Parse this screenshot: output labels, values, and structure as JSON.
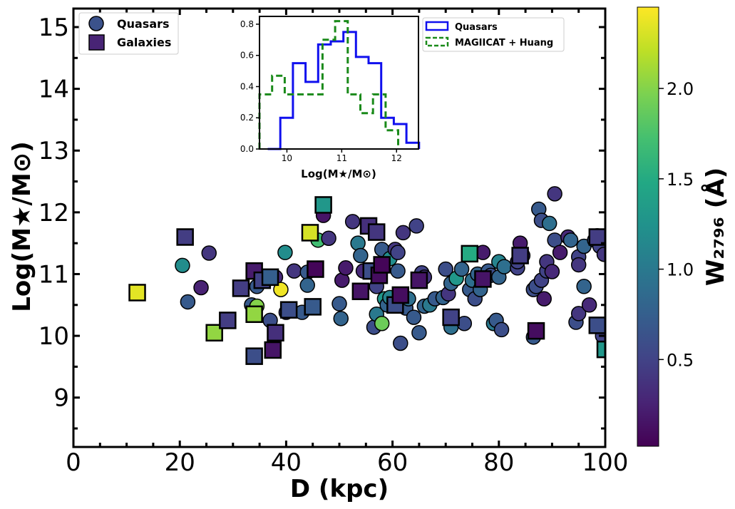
{
  "chart_data": [
    {
      "type": "scatter",
      "xlabel": "D (kpc)",
      "ylabel": "Log(M★/M⊙)",
      "xlim": [
        0,
        100
      ],
      "ylim": [
        8.2,
        15.3
      ],
      "xticks": [
        0,
        20,
        40,
        60,
        80,
        100
      ],
      "yticks": [
        9,
        10,
        11,
        12,
        13,
        14,
        15
      ],
      "grid": false,
      "legend": {
        "position": "top-left",
        "entries": [
          {
            "label": "Quasars",
            "marker": "circle"
          },
          {
            "label": "Galaxies",
            "marker": "square"
          }
        ]
      },
      "colorbar": {
        "label": "W₂₇₉₆ (Å)",
        "range": [
          0.02,
          2.45
        ],
        "ticks": [
          0.5,
          1.0,
          1.5,
          2.0
        ],
        "colormap": "viridis"
      },
      "series": [
        {
          "name": "Quasars",
          "marker": "circle",
          "points": [
            [
              20.5,
              11.14,
              1.2
            ],
            [
              21.5,
              10.55,
              0.7
            ],
            [
              24.0,
              10.78,
              0.25
            ],
            [
              25.5,
              11.34,
              0.4
            ],
            [
              33.5,
              10.5,
              0.7
            ],
            [
              34.5,
              10.48,
              2.0
            ],
            [
              34.5,
              10.8,
              0.7
            ],
            [
              36.0,
              10.9,
              0.6
            ],
            [
              37.0,
              10.25,
              0.6
            ],
            [
              38.0,
              10.95,
              0.3
            ],
            [
              39.0,
              10.75,
              2.4
            ],
            [
              39.8,
              11.35,
              1.2
            ],
            [
              40.0,
              10.38,
              0.5
            ],
            [
              41.5,
              11.05,
              0.4
            ],
            [
              43.0,
              10.38,
              0.7
            ],
            [
              44.0,
              11.03,
              0.7
            ],
            [
              44.0,
              10.82,
              0.8
            ],
            [
              46.0,
              11.55,
              1.7
            ],
            [
              47.0,
              11.95,
              0.15
            ],
            [
              48.0,
              11.58,
              0.4
            ],
            [
              50.0,
              10.52,
              0.7
            ],
            [
              50.3,
              10.28,
              0.8
            ],
            [
              50.5,
              10.9,
              0.2
            ],
            [
              51.2,
              11.1,
              0.2
            ],
            [
              52.5,
              11.85,
              0.4
            ],
            [
              53.5,
              11.5,
              1.0
            ],
            [
              54.0,
              11.3,
              0.8
            ],
            [
              54.5,
              11.05,
              0.3
            ],
            [
              56.5,
              10.14,
              0.6
            ],
            [
              57.0,
              10.8,
              0.5
            ],
            [
              57.0,
              10.35,
              1.0
            ],
            [
              58.0,
              10.2,
              1.9
            ],
            [
              58.0,
              11.4,
              0.7
            ],
            [
              58.5,
              10.6,
              1.3
            ],
            [
              59.0,
              10.5,
              0.8
            ],
            [
              59.5,
              10.62,
              1.1
            ],
            [
              59.5,
              11.25,
              1.2
            ],
            [
              60.5,
              11.4,
              0.4
            ],
            [
              61.0,
              11.35,
              0.5
            ],
            [
              61.0,
              11.05,
              0.7
            ],
            [
              61.5,
              9.88,
              0.6
            ],
            [
              62.0,
              11.67,
              0.4
            ],
            [
              62.5,
              10.45,
              0.7
            ],
            [
              63.0,
              10.6,
              0.9
            ],
            [
              64.0,
              10.3,
              0.7
            ],
            [
              64.5,
              11.78,
              0.5
            ],
            [
              65.0,
              10.05,
              0.7
            ],
            [
              65.5,
              11.02,
              0.5
            ],
            [
              66.0,
              10.95,
              0.4
            ],
            [
              66.0,
              10.48,
              0.8
            ],
            [
              67.0,
              10.5,
              1.0
            ],
            [
              68.0,
              10.6,
              0.7
            ],
            [
              69.5,
              10.62,
              0.8
            ],
            [
              70.0,
              11.08,
              0.6
            ],
            [
              70.5,
              10.68,
              0.4
            ],
            [
              71.0,
              10.14,
              0.9
            ],
            [
              71.0,
              10.85,
              0.8
            ],
            [
              72.0,
              10.93,
              1.3
            ],
            [
              73.0,
              11.08,
              0.8
            ],
            [
              73.5,
              10.2,
              0.6
            ],
            [
              74.5,
              10.75,
              0.7
            ],
            [
              75.0,
              10.9,
              0.9
            ],
            [
              75.5,
              10.6,
              0.6
            ],
            [
              76.0,
              11.0,
              0.8
            ],
            [
              76.5,
              10.75,
              0.8
            ],
            [
              77.0,
              11.35,
              0.2
            ],
            [
              78.0,
              11.05,
              0.7
            ],
            [
              78.5,
              10.98,
              0.6
            ],
            [
              79.0,
              10.2,
              1.0
            ],
            [
              79.5,
              10.25,
              0.7
            ],
            [
              80.0,
              11.2,
              1.1
            ],
            [
              80.0,
              10.95,
              0.8
            ],
            [
              80.5,
              10.1,
              0.6
            ],
            [
              81.0,
              11.12,
              0.9
            ],
            [
              83.5,
              11.1,
              0.5
            ],
            [
              83.5,
              11.2,
              0.5
            ],
            [
              84.0,
              11.5,
              0.2
            ],
            [
              84.5,
              11.3,
              0.4
            ],
            [
              86.5,
              10.75,
              0.6
            ],
            [
              86.5,
              9.98,
              0.7
            ],
            [
              87.0,
              10.8,
              0.6
            ],
            [
              87.5,
              12.05,
              0.7
            ],
            [
              88.0,
              11.87,
              0.6
            ],
            [
              88.0,
              10.9,
              0.5
            ],
            [
              88.5,
              10.6,
              0.2
            ],
            [
              89.0,
              11.05,
              0.5
            ],
            [
              89.0,
              11.2,
              0.4
            ],
            [
              89.5,
              11.82,
              0.9
            ],
            [
              90.0,
              11.04,
              0.3
            ],
            [
              90.5,
              11.55,
              0.6
            ],
            [
              90.5,
              12.3,
              0.4
            ],
            [
              91.5,
              11.35,
              0.2
            ],
            [
              93.0,
              11.6,
              0.3
            ],
            [
              93.5,
              11.55,
              0.8
            ],
            [
              94.5,
              10.22,
              0.6
            ],
            [
              95.0,
              11.28,
              0.5
            ],
            [
              95.0,
              11.15,
              0.4
            ],
            [
              95.0,
              10.36,
              0.4
            ],
            [
              96.0,
              11.45,
              0.8
            ],
            [
              96.0,
              10.8,
              0.8
            ],
            [
              97.0,
              10.5,
              0.3
            ],
            [
              98.0,
              11.55,
              0.6
            ],
            [
              98.5,
              11.62,
              0.3
            ],
            [
              99.0,
              11.45,
              0.5
            ],
            [
              99.5,
              10.0,
              0.5
            ],
            [
              99.8,
              11.32,
              0.4
            ]
          ]
        },
        {
          "name": "Galaxies",
          "marker": "square",
          "points": [
            [
              12.0,
              10.7,
              2.35
            ],
            [
              21.0,
              11.6,
              0.45
            ],
            [
              26.5,
              10.05,
              2.05
            ],
            [
              29.0,
              10.25,
              0.45
            ],
            [
              31.5,
              10.77,
              0.45
            ],
            [
              34.0,
              11.05,
              0.2
            ],
            [
              34.0,
              10.35,
              2.05
            ],
            [
              34.0,
              9.67,
              0.6
            ],
            [
              35.5,
              10.9,
              0.5
            ],
            [
              37.0,
              10.95,
              0.75
            ],
            [
              37.5,
              9.77,
              0.15
            ],
            [
              38.0,
              10.05,
              0.35
            ],
            [
              40.5,
              10.42,
              0.6
            ],
            [
              44.5,
              11.67,
              2.3
            ],
            [
              45.0,
              10.47,
              0.7
            ],
            [
              45.5,
              11.08,
              0.05
            ],
            [
              47.0,
              12.12,
              1.3
            ],
            [
              54.0,
              10.72,
              0.15
            ],
            [
              55.5,
              11.78,
              0.35
            ],
            [
              56.0,
              11.05,
              0.6
            ],
            [
              57.0,
              11.68,
              0.4
            ],
            [
              57.5,
              10.98,
              0.1
            ],
            [
              58.0,
              11.15,
              0.05
            ],
            [
              60.5,
              10.5,
              0.6
            ],
            [
              61.5,
              10.66,
              0.1
            ],
            [
              65.0,
              10.9,
              0.15
            ],
            [
              71.0,
              10.3,
              0.5
            ],
            [
              74.5,
              11.33,
              1.5
            ],
            [
              77.0,
              10.92,
              0.15
            ],
            [
              84.0,
              11.3,
              0.45
            ],
            [
              87.0,
              10.08,
              0.1
            ],
            [
              98.5,
              11.6,
              0.45
            ],
            [
              98.5,
              10.17,
              0.6
            ],
            [
              100.0,
              9.78,
              1.3
            ]
          ]
        }
      ]
    },
    {
      "type": "histogram",
      "inset": true,
      "xlabel": "Log(M★/M⊙)",
      "ylabel": "",
      "xlim": [
        9.5,
        12.4
      ],
      "ylim": [
        0,
        0.85
      ],
      "xticks": [
        10,
        11,
        12
      ],
      "yticks": [
        0.0,
        0.2,
        0.4,
        0.6,
        0.8
      ],
      "legend": {
        "position": "top-right"
      },
      "series": [
        {
          "name": "Quasars",
          "style": "solid",
          "color": "#1010ee",
          "bin_edges": [
            9.65,
            9.88,
            10.11,
            10.34,
            10.57,
            10.8,
            11.03,
            11.26,
            11.49,
            11.72,
            11.95,
            12.18,
            12.41
          ],
          "values": [
            0.0,
            0.2,
            0.55,
            0.43,
            0.67,
            0.69,
            0.75,
            0.59,
            0.55,
            0.2,
            0.16,
            0.04
          ]
        },
        {
          "name": "MAGIICAT + Huang",
          "style": "dashed",
          "color": "#1a8a1a",
          "bin_edges": [
            9.5,
            9.73,
            9.96,
            10.19,
            10.42,
            10.65,
            10.88,
            11.11,
            11.34,
            11.57,
            11.8,
            12.03
          ],
          "values": [
            0.35,
            0.47,
            0.35,
            0.35,
            0.35,
            0.7,
            0.82,
            0.35,
            0.23,
            0.35,
            0.12
          ]
        }
      ]
    }
  ]
}
